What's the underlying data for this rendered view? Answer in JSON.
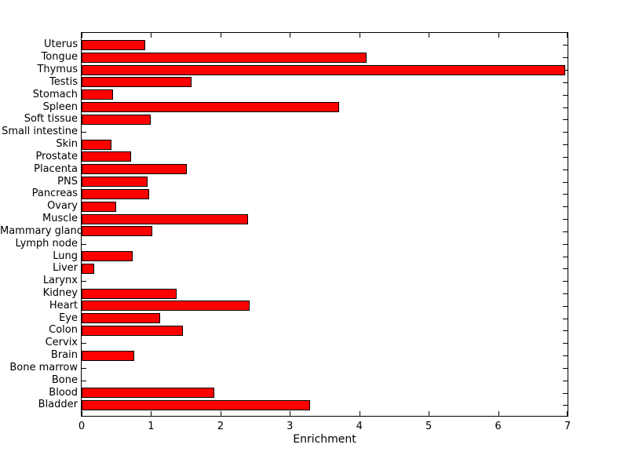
{
  "figure": {
    "background_color": "#ffffff",
    "bar_fill_color": "#ff0000",
    "bar_edge_color": "#000000",
    "axis_color": "#000000",
    "text_color": "#000000"
  },
  "chart_data": {
    "type": "bar",
    "orientation": "horizontal",
    "title": "",
    "xlabel": "Enrichment",
    "ylabel": "",
    "xlim": [
      0,
      7
    ],
    "xticks": [
      0,
      1,
      2,
      3,
      4,
      5,
      6,
      7
    ],
    "xtick_labels": [
      "0",
      "1",
      "2",
      "3",
      "4",
      "5",
      "6",
      "7"
    ],
    "grid": false,
    "legend": null,
    "categories": [
      "Uterus",
      "Tongue",
      "Thymus",
      "Testis",
      "Stomach",
      "Spleen",
      "Soft tissue",
      "Small intestine",
      "Skin",
      "Prostate",
      "Placenta",
      "PNS",
      "Pancreas",
      "Ovary",
      "Muscle",
      "Mammary gland",
      "Lymph node",
      "Lung",
      "Liver",
      "Larynx",
      "Kidney",
      "Heart",
      "Eye",
      "Colon",
      "Cervix",
      "Brain",
      "Bone marrow",
      "Bone",
      "Blood",
      "Bladder"
    ],
    "values": [
      0.92,
      4.11,
      6.97,
      1.58,
      0.45,
      3.71,
      1.0,
      0,
      0.43,
      0.71,
      1.51,
      0.95,
      0.97,
      0.5,
      2.4,
      1.02,
      0,
      0.74,
      0.18,
      0,
      1.37,
      2.42,
      1.13,
      1.46,
      0,
      0.76,
      0,
      0,
      1.91,
      3.29
    ]
  }
}
